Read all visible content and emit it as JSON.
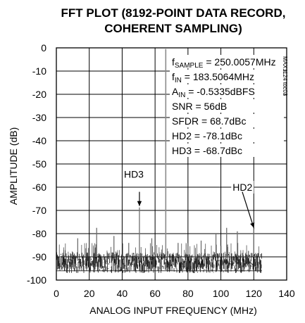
{
  "chart_data": {
    "type": "line",
    "title_lines": [
      "FFT PLOT (8192-POINT DATA RECORD,",
      "COHERENT SAMPLING)"
    ],
    "xlabel": "ANALOG INPUT FREQUENCY (MHz)",
    "ylabel": "AMPLITUDE (dB)",
    "xlim": [
      0,
      140
    ],
    "ylim": [
      -100,
      0
    ],
    "xticks": [
      0,
      20,
      40,
      60,
      80,
      100,
      120,
      140
    ],
    "yticks": [
      0,
      -10,
      -20,
      -30,
      -40,
      -50,
      -60,
      -70,
      -80,
      -90,
      -100
    ],
    "grid": true,
    "figure_id": "MAX1124 toc03",
    "parameters": [
      {
        "base": "f",
        "sub": "SAMPLE",
        "rest": " = 250.0057MHz"
      },
      {
        "base": "f",
        "sub": "IN",
        "rest": " = 183.5064MHz"
      },
      {
        "base": "A",
        "sub": "IN",
        "rest": " = -0.5335dBFS"
      },
      {
        "base": "SNR = 56dB",
        "sub": "",
        "rest": ""
      },
      {
        "base": "SFDR = 68.7dBc",
        "sub": "",
        "rest": ""
      },
      {
        "base": "HD2 = -78.1dBc",
        "sub": "",
        "rest": ""
      },
      {
        "base": "HD3 = -68.7dBc",
        "sub": "",
        "rest": ""
      }
    ],
    "series": [
      {
        "noise_floor_range_db": [
          -97,
          -88
        ],
        "spectrum_end_mhz": 125,
        "peaks": [
          {
            "x": 66.5,
            "y": -0.5
          },
          {
            "x": 50.5,
            "y": -68.7
          },
          {
            "x": 120,
            "y": -78.1
          },
          {
            "x": 24.5,
            "y": -77.5
          },
          {
            "x": 103.5,
            "y": -77.5
          },
          {
            "x": 110,
            "y": -79
          },
          {
            "x": 97,
            "y": -80
          },
          {
            "x": 35,
            "y": -81
          },
          {
            "x": 13,
            "y": -82
          },
          {
            "x": 58,
            "y": -82
          },
          {
            "x": 88,
            "y": -83
          },
          {
            "x": 44,
            "y": -84
          },
          {
            "x": 74,
            "y": -84
          }
        ]
      }
    ],
    "annotations": [
      {
        "text": "HD3",
        "target_x": 50.5,
        "target_y": -68.7
      },
      {
        "text": "HD2",
        "target_x": 120,
        "target_y": -78.1
      }
    ]
  }
}
